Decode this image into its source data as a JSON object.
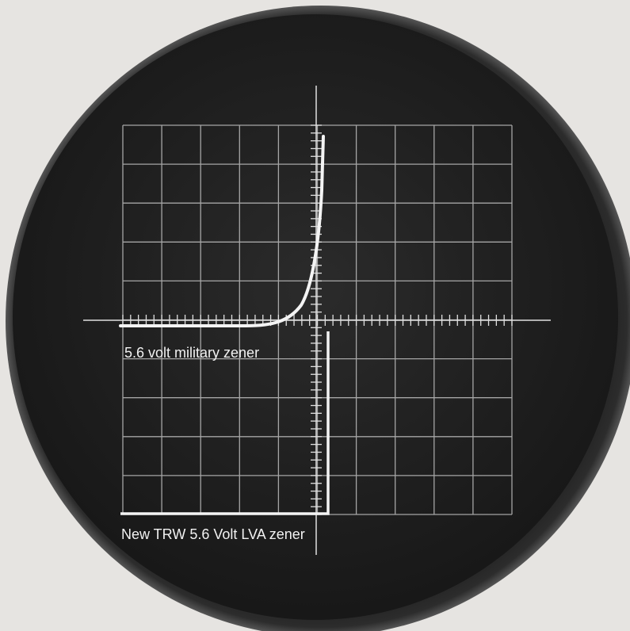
{
  "labels": [
    "5.6 volt military zener",
    "New TRW 5.6 Volt LVA zener"
  ]
}
